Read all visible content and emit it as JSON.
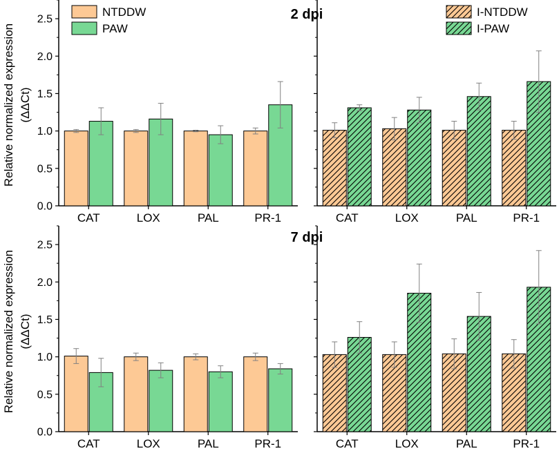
{
  "colors": {
    "ntddw": "#FDC995",
    "paw": "#78D894",
    "axis": "#000000",
    "errorbar": "#808080"
  },
  "ylabel_line1": "Relative normalized expression",
  "ylabel_line2": "(ΔΔCt)",
  "chart_data": [
    {
      "type": "bar",
      "title": "",
      "panel": "2 dpi uninoculated",
      "categories": [
        "CAT",
        "LOX",
        "PAL",
        "PR-1"
      ],
      "series": [
        {
          "name": "NTDDW",
          "values": [
            1.0,
            1.0,
            1.0,
            1.0
          ],
          "errors": [
            0.02,
            0.02,
            0.01,
            0.04
          ],
          "hatched": false
        },
        {
          "name": "PAW",
          "values": [
            1.13,
            1.16,
            0.95,
            1.35
          ],
          "errors": [
            0.18,
            0.21,
            0.12,
            0.31
          ],
          "hatched": false
        }
      ],
      "ylim": [
        0,
        2.75
      ],
      "yticks": [
        "0.0",
        "0.5",
        "1.0",
        "1.5",
        "2.0",
        "2.5"
      ],
      "legend": "top-left"
    },
    {
      "type": "bar",
      "title": "2 dpi",
      "panel": "2 dpi inoculated",
      "categories": [
        "CAT",
        "LOX",
        "PAL",
        "PR-1"
      ],
      "series": [
        {
          "name": "I-NTDDW",
          "values": [
            1.01,
            1.03,
            1.01,
            1.01
          ],
          "errors": [
            0.1,
            0.15,
            0.12,
            0.12
          ],
          "hatched": true
        },
        {
          "name": "I-PAW",
          "values": [
            1.31,
            1.28,
            1.46,
            1.66
          ],
          "errors": [
            0.04,
            0.17,
            0.18,
            0.41
          ],
          "hatched": true
        }
      ],
      "ylim": [
        0,
        2.75
      ],
      "yticks": [
        "0.0",
        "0.5",
        "1.0",
        "1.5",
        "2.0",
        "2.5"
      ],
      "legend": "top-right"
    },
    {
      "type": "bar",
      "title": "",
      "panel": "7 dpi uninoculated",
      "categories": [
        "CAT",
        "LOX",
        "PAL",
        "PR-1"
      ],
      "series": [
        {
          "name": "NTDDW",
          "values": [
            1.01,
            1.0,
            1.0,
            1.0
          ],
          "errors": [
            0.1,
            0.05,
            0.04,
            0.05
          ],
          "hatched": false
        },
        {
          "name": "PAW",
          "values": [
            0.79,
            0.82,
            0.8,
            0.84
          ],
          "errors": [
            0.19,
            0.1,
            0.08,
            0.07
          ],
          "hatched": false
        }
      ],
      "ylim": [
        0,
        2.75
      ],
      "yticks": [
        "0.0",
        "0.5",
        "1.0",
        "1.5",
        "2.0",
        "2.5"
      ],
      "legend": "none"
    },
    {
      "type": "bar",
      "title": "7 dpi",
      "panel": "7 dpi inoculated",
      "categories": [
        "CAT",
        "LOX",
        "PAL",
        "PR-1"
      ],
      "series": [
        {
          "name": "I-NTDDW",
          "values": [
            1.03,
            1.03,
            1.04,
            1.04
          ],
          "errors": [
            0.17,
            0.17,
            0.2,
            0.19
          ],
          "hatched": true
        },
        {
          "name": "I-PAW",
          "values": [
            1.26,
            1.85,
            1.54,
            1.93
          ],
          "errors": [
            0.21,
            0.39,
            0.32,
            0.49
          ],
          "hatched": true
        }
      ],
      "ylim": [
        0,
        2.75
      ],
      "yticks": [
        "0.0",
        "0.5",
        "1.0",
        "1.5",
        "2.0",
        "2.5"
      ],
      "legend": "none"
    }
  ]
}
